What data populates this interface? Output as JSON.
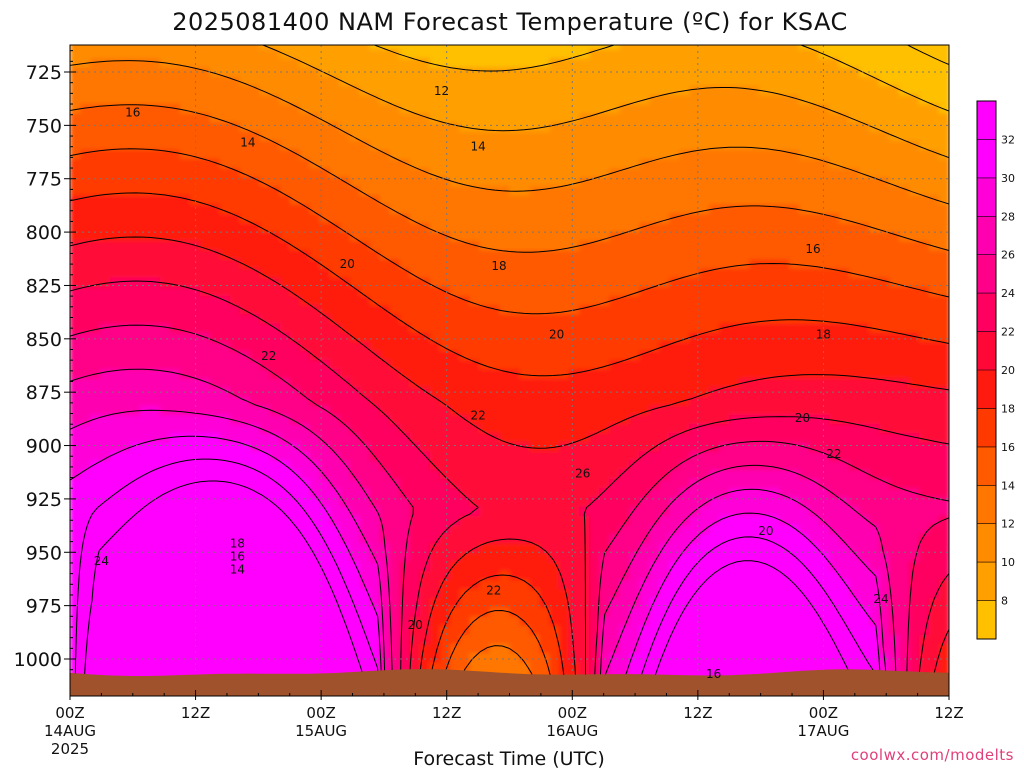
{
  "chart_data": {
    "type": "heatmap",
    "title": "2025081400 NAM Forecast Temperature (ºC) for KSAC",
    "xlabel": "Forecast Time (UTC)",
    "ylabel": "",
    "units": "ºC",
    "y_axis": {
      "ticks": [
        725,
        750,
        775,
        800,
        825,
        850,
        875,
        900,
        925,
        950,
        975,
        1000
      ],
      "range": [
        710,
        1010
      ],
      "inverted": true
    },
    "x_axis": {
      "ticks": [
        {
          "hour": 0,
          "label": "00Z",
          "sub": "14AUG",
          "sub2": "2025"
        },
        {
          "hour": 12,
          "label": "12Z",
          "sub": "",
          "sub2": ""
        },
        {
          "hour": 24,
          "label": "00Z",
          "sub": "15AUG",
          "sub2": ""
        },
        {
          "hour": 36,
          "label": "12Z",
          "sub": "",
          "sub2": ""
        },
        {
          "hour": 48,
          "label": "00Z",
          "sub": "16AUG",
          "sub2": ""
        },
        {
          "hour": 60,
          "label": "12Z",
          "sub": "",
          "sub2": ""
        },
        {
          "hour": 72,
          "label": "00Z",
          "sub": "17AUG",
          "sub2": ""
        },
        {
          "hour": 84,
          "label": "12Z",
          "sub": "",
          "sub2": ""
        }
      ],
      "range": [
        0,
        84
      ]
    },
    "grid": true,
    "colorbar": {
      "levels": [
        8,
        10,
        12,
        14,
        16,
        18,
        20,
        22,
        24,
        26,
        28,
        30,
        32
      ],
      "colors": [
        "#ffc000",
        "#ffa000",
        "#ff8c00",
        "#ff7700",
        "#ff5a00",
        "#ff3a00",
        "#ff1a10",
        "#ff0838",
        "#ff0060",
        "#ff0088",
        "#ff00b0",
        "#ff00d8",
        "#ff00ff",
        "#ff00ff"
      ]
    },
    "contour_labels": [
      {
        "value": 16,
        "t": 6.0,
        "p": 744
      },
      {
        "value": 14,
        "t": 17.0,
        "p": 758
      },
      {
        "value": 12,
        "t": 35.5,
        "p": 734
      },
      {
        "value": 14,
        "t": 39.0,
        "p": 760
      },
      {
        "value": 20,
        "t": 26.5,
        "p": 815
      },
      {
        "value": 18,
        "t": 41.0,
        "p": 816
      },
      {
        "value": 22,
        "t": 19.0,
        "p": 858
      },
      {
        "value": 20,
        "t": 46.5,
        "p": 848
      },
      {
        "value": 16,
        "t": 71.0,
        "p": 808
      },
      {
        "value": 18,
        "t": 72.0,
        "p": 848
      },
      {
        "value": 22,
        "t": 39.0,
        "p": 886
      },
      {
        "value": 20,
        "t": 70.0,
        "p": 887
      },
      {
        "value": 22,
        "t": 73.0,
        "p": 904
      },
      {
        "value": 26,
        "t": 49.0,
        "p": 913
      },
      {
        "value": 20,
        "t": 66.5,
        "p": 940
      },
      {
        "value": 18,
        "t": 16.0,
        "p": 946
      },
      {
        "value": 16,
        "t": 16.0,
        "p": 952
      },
      {
        "value": 14,
        "t": 16.0,
        "p": 958
      },
      {
        "value": 24,
        "t": 3.0,
        "p": 954
      },
      {
        "value": 22,
        "t": 40.5,
        "p": 968
      },
      {
        "value": 20,
        "t": 33.0,
        "p": 984
      },
      {
        "value": 24,
        "t": 77.5,
        "p": 972
      },
      {
        "value": 16,
        "t": 61.5,
        "p": 1007
      }
    ],
    "surface_color": "#a0522d"
  },
  "credit": "coolwx.com/modelts"
}
